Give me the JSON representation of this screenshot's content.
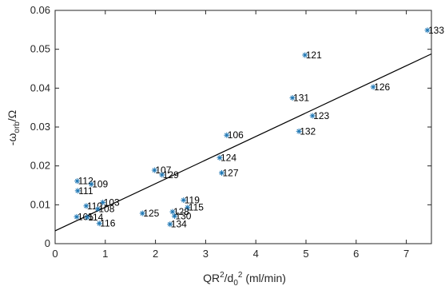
{
  "chart_data": {
    "type": "scatter",
    "xlabel": {
      "base": "QR",
      "sup1": "2",
      "mid": "/d",
      "sub": "0",
      "sup2": "2",
      "tail": " (ml/min)"
    },
    "ylabel": {
      "prefix": "-ω",
      "sub": "orb",
      "tail": "/Ω"
    },
    "xlim": [
      0,
      7.5
    ],
    "ylim": [
      0,
      0.06
    ],
    "xticks": [
      0,
      1,
      2,
      3,
      4,
      5,
      6,
      7
    ],
    "yticks": [
      0,
      0.01,
      0.02,
      0.03,
      0.04,
      0.05,
      0.06
    ],
    "xtick_labels": [
      "0",
      "1",
      "2",
      "3",
      "4",
      "5",
      "6",
      "7"
    ],
    "ytick_labels": [
      "0",
      "0.01",
      "0.02",
      "0.03",
      "0.04",
      "0.05",
      "0.06"
    ],
    "grid": false,
    "marker_color": "#1f77b4",
    "fit_line": {
      "x": [
        0,
        7.5
      ],
      "y": [
        0.0033,
        0.0488
      ]
    },
    "points": [
      {
        "label": "133",
        "x": 7.42,
        "y": 0.0549
      },
      {
        "label": "121",
        "x": 4.98,
        "y": 0.0485
      },
      {
        "label": "126",
        "x": 6.34,
        "y": 0.0403
      },
      {
        "label": "131",
        "x": 4.73,
        "y": 0.0375
      },
      {
        "label": "123",
        "x": 5.13,
        "y": 0.0329
      },
      {
        "label": "132",
        "x": 4.86,
        "y": 0.0289
      },
      {
        "label": "106",
        "x": 3.42,
        "y": 0.0279
      },
      {
        "label": "124",
        "x": 3.28,
        "y": 0.0221
      },
      {
        "label": "127",
        "x": 3.32,
        "y": 0.0182
      },
      {
        "label": "107",
        "x": 1.98,
        "y": 0.0189
      },
      {
        "label": "129",
        "x": 2.13,
        "y": 0.0177
      },
      {
        "label": "112",
        "x": 0.44,
        "y": 0.0161
      },
      {
        "label": "109",
        "x": 0.72,
        "y": 0.0153
      },
      {
        "label": "111",
        "x": 0.45,
        "y": 0.0136
      },
      {
        "label": "103",
        "x": 0.95,
        "y": 0.0106
      },
      {
        "label": "119",
        "x": 2.56,
        "y": 0.0112
      },
      {
        "label": "115",
        "x": 2.64,
        "y": 0.0093
      },
      {
        "label": "110",
        "x": 0.62,
        "y": 0.0097
      },
      {
        "label": "108",
        "x": 0.85,
        "y": 0.0089
      },
      {
        "label": "125",
        "x": 1.74,
        "y": 0.0078
      },
      {
        "label": "128",
        "x": 2.34,
        "y": 0.0082
      },
      {
        "label": "130",
        "x": 2.38,
        "y": 0.0071
      },
      {
        "label": "105",
        "x": 0.43,
        "y": 0.0069
      },
      {
        "label": "114",
        "x": 0.64,
        "y": 0.0068
      },
      {
        "label": "116",
        "x": 0.88,
        "y": 0.0052
      },
      {
        "label": "134",
        "x": 2.29,
        "y": 0.005
      }
    ]
  }
}
